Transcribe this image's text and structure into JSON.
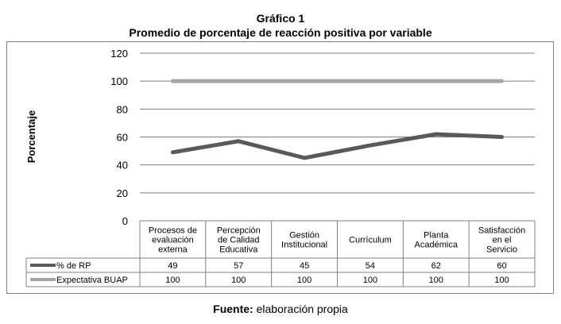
{
  "header": {
    "title": "Gráfico 1",
    "subtitle": "Promedio de porcentaje de reacción positiva por variable"
  },
  "footer": {
    "label": "Fuente:",
    "text": " elaboración propia"
  },
  "chart_data": {
    "type": "line",
    "title": "Gráfico 1",
    "subtitle": "Promedio de porcentaje de reacción positiva por variable",
    "xlabel": "",
    "ylabel": "Porcentaje",
    "ylim": [
      0,
      120
    ],
    "yticks": [
      0,
      20,
      40,
      60,
      80,
      100,
      120
    ],
    "grid": true,
    "legend": "table-below",
    "categories": [
      [
        "Procesos de",
        "evaluación",
        "externa"
      ],
      [
        "Percepción",
        "de Calidad",
        "Educativa"
      ],
      [
        "Gestión",
        "Institucional"
      ],
      [
        "Currículum"
      ],
      [
        "Planta",
        "Académica"
      ],
      [
        "Satisfacción",
        "en el",
        "Servicio"
      ]
    ],
    "series": [
      {
        "name": "% de RP",
        "values": [
          49,
          57,
          45,
          54,
          62,
          60
        ],
        "color": "#595959"
      },
      {
        "name": "Expectativa BUAP",
        "values": [
          100,
          100,
          100,
          100,
          100,
          100
        ],
        "color": "#a6a6a6"
      }
    ]
  }
}
